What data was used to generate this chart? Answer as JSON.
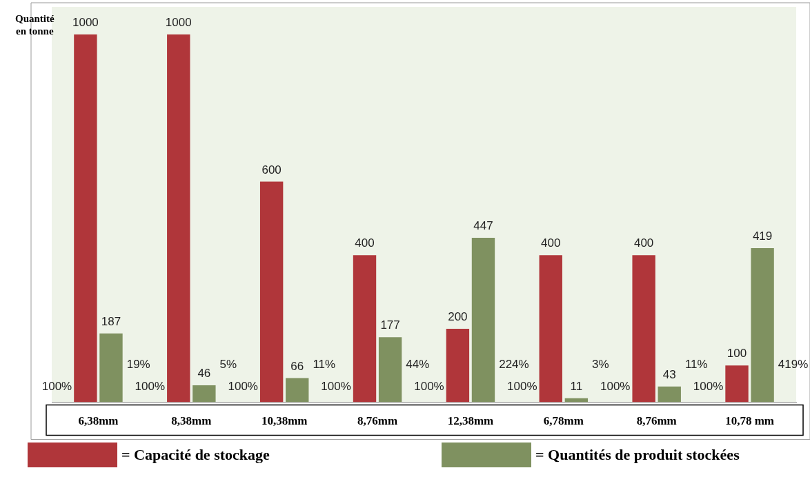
{
  "chart_data": {
    "type": "bar",
    "ylabel": "Quantité en tonne",
    "categories": [
      "6,38mm",
      "8,38mm",
      "10,38mm",
      "8,76mm",
      "12,38mm",
      "6,78mm",
      "8,76mm",
      "10,78 mm"
    ],
    "series": [
      {
        "name": "= Capacité de stockage",
        "color": "#b0363a",
        "values": [
          1000,
          1000,
          600,
          400,
          200,
          400,
          400,
          100
        ]
      },
      {
        "name": "= Quantités de produit stockées",
        "color": "#7f9160",
        "values": [
          187,
          46,
          66,
          177,
          447,
          11,
          43,
          419
        ]
      }
    ],
    "annotations": [
      "100%",
      "19%",
      "100%",
      "5%",
      "100%",
      "11%",
      "100%",
      "44%",
      "100%",
      "224%",
      "100%",
      "3%",
      "100%",
      "11%",
      "100%",
      "419%"
    ],
    "data_labels": true,
    "grid": false,
    "legend": "bottom"
  }
}
